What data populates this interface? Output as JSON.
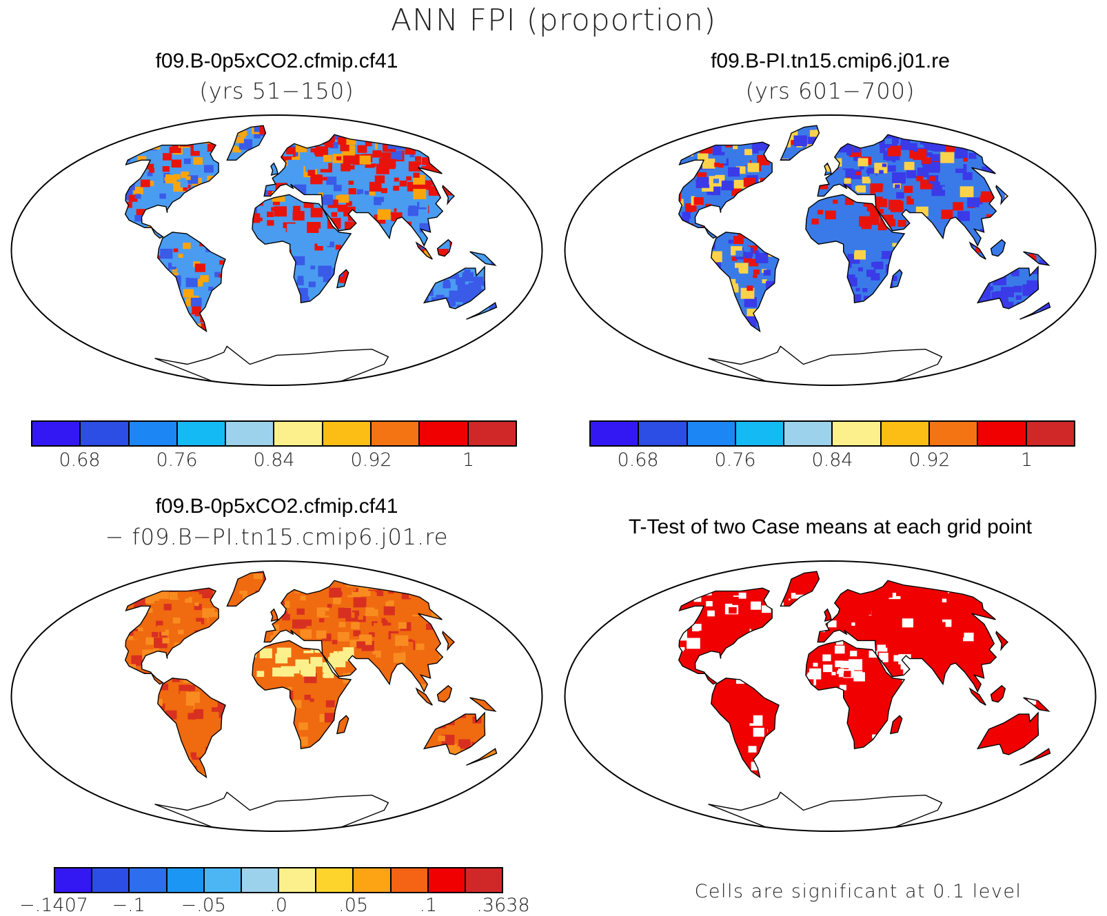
{
  "figure": {
    "suptitle": "ANN FPI (proportion)"
  },
  "panels": [
    {
      "id": "test_case",
      "title": "f09.B-0p5xCO2.cfmip.cf41",
      "subtitle": "(yrs 51−150)",
      "dominant": "mixed warm",
      "colors": {
        "land_high": "#e8140c",
        "land_mid": "#fca40c",
        "land_low": "#3a5ae8",
        "land_base": "#4a9cf0"
      }
    },
    {
      "id": "ref_case",
      "title": "f09.B-PI.tn15.cmip6.j01.re",
      "subtitle": "(yrs 601−700)",
      "dominant": "mixed cool",
      "colors": {
        "land_high": "#e8140c",
        "land_mid": "#fcd24a",
        "land_low": "#3a3ae8",
        "land_base": "#3a7ae8"
      }
    },
    {
      "id": "difference",
      "title": "f09.B-0p5xCO2.cfmip.cf41",
      "subtitle": "− f09.B−PI.tn15.cmip6.j01.re",
      "dominant": "warm",
      "colors": {
        "land_high": "#d83020",
        "land_mid": "#f88c20",
        "land_low": "#fcf08c",
        "land_base": "#f06a10"
      }
    },
    {
      "id": "ttest",
      "title": "T-Test of two Case means at each grid point",
      "note": "Cells are significant at 0.1 level",
      "colors": {
        "land_high": "#f00000",
        "land_mid": "#f00000",
        "land_low": "#ffffff",
        "land_base": "#f00000"
      }
    }
  ],
  "colorbars": {
    "abs": {
      "colors": [
        "#3418f4",
        "#2c4ee4",
        "#1c86f4",
        "#14baf4",
        "#9cd2ec",
        "#fcf08c",
        "#fcbe14",
        "#f47414",
        "#f00000",
        "#d02828"
      ],
      "ticks": [
        {
          "label": "0.68",
          "pos": 1
        },
        {
          "label": "0.76",
          "pos": 3
        },
        {
          "label": "0.84",
          "pos": 5
        },
        {
          "label": "0.92",
          "pos": 7
        },
        {
          "label": "1",
          "pos": 9
        }
      ]
    },
    "diff": {
      "colors": [
        "#3418f4",
        "#2c4ee4",
        "#2c6eec",
        "#1c96f4",
        "#4cb6f4",
        "#9cd2ec",
        "#fcf08c",
        "#fcd42c",
        "#fca414",
        "#f46414",
        "#f00000",
        "#d02828"
      ],
      "ticks": [
        {
          "label": "−.1407",
          "pos": 0
        },
        {
          "label": "−.1",
          "pos": 2
        },
        {
          "label": "−.05",
          "pos": 4
        },
        {
          "label": ".0",
          "pos": 6
        },
        {
          "label": ".05",
          "pos": 8
        },
        {
          "label": ".1",
          "pos": 10
        },
        {
          "label": ".3638",
          "pos": 12
        }
      ]
    }
  }
}
